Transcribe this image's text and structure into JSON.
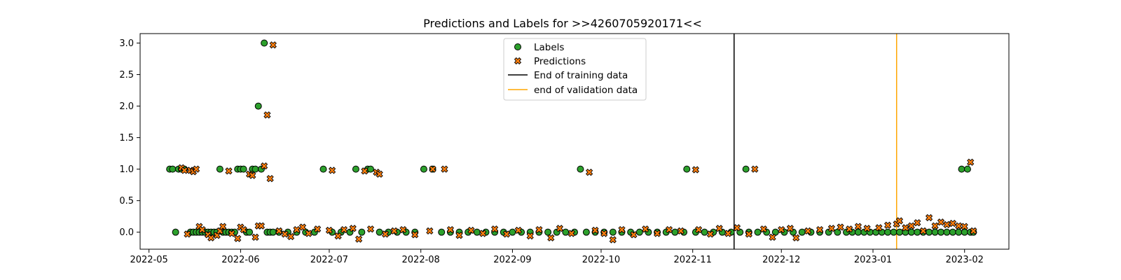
{
  "chart_data": {
    "type": "scatter",
    "title": "Predictions and Labels for >>4260705920171<<",
    "xlabel": "",
    "ylabel": "",
    "xlim": [
      "2022-04-28",
      "2023-02-16"
    ],
    "ylim": [
      -0.27,
      3.15
    ],
    "x_ticks": [
      "2022-05",
      "2022-06",
      "2022-07",
      "2022-08",
      "2022-09",
      "2022-10",
      "2022-11",
      "2022-12",
      "2023-01",
      "2023-02"
    ],
    "y_ticks": [
      "0.0",
      "0.5",
      "1.0",
      "1.5",
      "2.0",
      "2.5",
      "3.0"
    ],
    "grid": false,
    "legend_position": "upper center",
    "series": [
      {
        "name": "Labels",
        "marker": "circle",
        "color": "#2ca02c",
        "edge_color": "#000000",
        "points": [
          {
            "x": "2022-05-08",
            "y": 1
          },
          {
            "x": "2022-05-09",
            "y": 1
          },
          {
            "x": "2022-05-10",
            "y": 0
          },
          {
            "x": "2022-05-11",
            "y": 1
          },
          {
            "x": "2022-05-12",
            "y": 1
          },
          {
            "x": "2022-05-13",
            "y": 1
          },
          {
            "x": "2022-05-15",
            "y": 0
          },
          {
            "x": "2022-05-16",
            "y": 0
          },
          {
            "x": "2022-05-17",
            "y": 0
          },
          {
            "x": "2022-05-18",
            "y": 0
          },
          {
            "x": "2022-05-19",
            "y": 0
          },
          {
            "x": "2022-05-20",
            "y": 0
          },
          {
            "x": "2022-05-21",
            "y": 0
          },
          {
            "x": "2022-05-22",
            "y": 0
          },
          {
            "x": "2022-05-23",
            "y": 0
          },
          {
            "x": "2022-05-24",
            "y": 0
          },
          {
            "x": "2022-05-25",
            "y": 1
          },
          {
            "x": "2022-05-26",
            "y": 0
          },
          {
            "x": "2022-05-27",
            "y": 0
          },
          {
            "x": "2022-05-28",
            "y": 0
          },
          {
            "x": "2022-05-29",
            "y": 0
          },
          {
            "x": "2022-05-30",
            "y": 0
          },
          {
            "x": "2022-05-31",
            "y": 1
          },
          {
            "x": "2022-06-01",
            "y": 1
          },
          {
            "x": "2022-06-02",
            "y": 1
          },
          {
            "x": "2022-06-03",
            "y": 0
          },
          {
            "x": "2022-06-04",
            "y": 0
          },
          {
            "x": "2022-06-05",
            "y": 1
          },
          {
            "x": "2022-06-06",
            "y": 1
          },
          {
            "x": "2022-06-07",
            "y": 2
          },
          {
            "x": "2022-06-08",
            "y": 1
          },
          {
            "x": "2022-06-09",
            "y": 3
          },
          {
            "x": "2022-06-10",
            "y": 0
          },
          {
            "x": "2022-06-11",
            "y": 0
          },
          {
            "x": "2022-06-12",
            "y": 0
          },
          {
            "x": "2022-06-14",
            "y": 0
          },
          {
            "x": "2022-06-17",
            "y": 0
          },
          {
            "x": "2022-06-20",
            "y": 0
          },
          {
            "x": "2022-06-23",
            "y": 0
          },
          {
            "x": "2022-06-26",
            "y": 0
          },
          {
            "x": "2022-06-29",
            "y": 1
          },
          {
            "x": "2022-07-02",
            "y": 0
          },
          {
            "x": "2022-07-05",
            "y": 0
          },
          {
            "x": "2022-07-08",
            "y": 0
          },
          {
            "x": "2022-07-10",
            "y": 1
          },
          {
            "x": "2022-07-12",
            "y": 0
          },
          {
            "x": "2022-07-14",
            "y": 1
          },
          {
            "x": "2022-07-15",
            "y": 1
          },
          {
            "x": "2022-07-18",
            "y": 0
          },
          {
            "x": "2022-07-21",
            "y": 0
          },
          {
            "x": "2022-07-24",
            "y": 0
          },
          {
            "x": "2022-07-27",
            "y": 0
          },
          {
            "x": "2022-07-30",
            "y": 0
          },
          {
            "x": "2022-08-02",
            "y": 1
          },
          {
            "x": "2022-08-05",
            "y": 1
          },
          {
            "x": "2022-08-08",
            "y": 0
          },
          {
            "x": "2022-08-11",
            "y": 0
          },
          {
            "x": "2022-08-14",
            "y": 0
          },
          {
            "x": "2022-08-17",
            "y": 0
          },
          {
            "x": "2022-08-20",
            "y": 0
          },
          {
            "x": "2022-08-23",
            "y": 0
          },
          {
            "x": "2022-08-26",
            "y": 0
          },
          {
            "x": "2022-08-29",
            "y": 0
          },
          {
            "x": "2022-09-01",
            "y": 0
          },
          {
            "x": "2022-09-04",
            "y": 0
          },
          {
            "x": "2022-09-07",
            "y": 0
          },
          {
            "x": "2022-09-10",
            "y": 0
          },
          {
            "x": "2022-09-13",
            "y": 0
          },
          {
            "x": "2022-09-16",
            "y": 0
          },
          {
            "x": "2022-09-19",
            "y": 0
          },
          {
            "x": "2022-09-22",
            "y": 0
          },
          {
            "x": "2022-09-24",
            "y": 1
          },
          {
            "x": "2022-09-26",
            "y": 0
          },
          {
            "x": "2022-09-29",
            "y": 0
          },
          {
            "x": "2022-10-02",
            "y": 0
          },
          {
            "x": "2022-10-05",
            "y": 0
          },
          {
            "x": "2022-10-08",
            "y": 0
          },
          {
            "x": "2022-10-11",
            "y": 0
          },
          {
            "x": "2022-10-14",
            "y": 0
          },
          {
            "x": "2022-10-17",
            "y": 0
          },
          {
            "x": "2022-10-20",
            "y": 0
          },
          {
            "x": "2022-10-23",
            "y": 0
          },
          {
            "x": "2022-10-26",
            "y": 0
          },
          {
            "x": "2022-10-29",
            "y": 0
          },
          {
            "x": "2022-10-30",
            "y": 1
          },
          {
            "x": "2022-11-02",
            "y": 0
          },
          {
            "x": "2022-11-05",
            "y": 0
          },
          {
            "x": "2022-11-08",
            "y": 0
          },
          {
            "x": "2022-11-11",
            "y": 0
          },
          {
            "x": "2022-11-14",
            "y": 0
          },
          {
            "x": "2022-11-17",
            "y": 0
          },
          {
            "x": "2022-11-19",
            "y": 1
          },
          {
            "x": "2022-11-20",
            "y": 0
          },
          {
            "x": "2022-11-23",
            "y": 0
          },
          {
            "x": "2022-11-26",
            "y": 0
          },
          {
            "x": "2022-11-29",
            "y": 0
          },
          {
            "x": "2022-12-02",
            "y": 0
          },
          {
            "x": "2022-12-05",
            "y": 0
          },
          {
            "x": "2022-12-08",
            "y": 0
          },
          {
            "x": "2022-12-11",
            "y": 0
          },
          {
            "x": "2022-12-14",
            "y": 0
          },
          {
            "x": "2022-12-17",
            "y": 0
          },
          {
            "x": "2022-12-20",
            "y": 0
          },
          {
            "x": "2022-12-23",
            "y": 0
          },
          {
            "x": "2022-12-25",
            "y": 0
          },
          {
            "x": "2022-12-27",
            "y": 0
          },
          {
            "x": "2022-12-29",
            "y": 0
          },
          {
            "x": "2022-12-31",
            "y": 0
          },
          {
            "x": "2023-01-02",
            "y": 0
          },
          {
            "x": "2023-01-04",
            "y": 0
          },
          {
            "x": "2023-01-06",
            "y": 0
          },
          {
            "x": "2023-01-08",
            "y": 0
          },
          {
            "x": "2023-01-10",
            "y": 0
          },
          {
            "x": "2023-01-12",
            "y": 0
          },
          {
            "x": "2023-01-14",
            "y": 0
          },
          {
            "x": "2023-01-16",
            "y": 0
          },
          {
            "x": "2023-01-18",
            "y": 0
          },
          {
            "x": "2023-01-20",
            "y": 0
          },
          {
            "x": "2023-01-22",
            "y": 0
          },
          {
            "x": "2023-01-24",
            "y": 0
          },
          {
            "x": "2023-01-26",
            "y": 0
          },
          {
            "x": "2023-01-28",
            "y": 0
          },
          {
            "x": "2023-01-30",
            "y": 0
          },
          {
            "x": "2023-01-31",
            "y": 1
          },
          {
            "x": "2023-02-01",
            "y": 0
          },
          {
            "x": "2023-02-02",
            "y": 1
          },
          {
            "x": "2023-02-03",
            "y": 0
          },
          {
            "x": "2023-02-04",
            "y": 0
          }
        ]
      },
      {
        "name": "Predictions",
        "marker": "x-filled",
        "color": "#ff7f0e",
        "edge_color": "#000000",
        "points": [
          {
            "x": "2022-05-12",
            "y": 1.02
          },
          {
            "x": "2022-05-13",
            "y": 0.98
          },
          {
            "x": "2022-05-14",
            "y": -0.03
          },
          {
            "x": "2022-05-15",
            "y": 0.98
          },
          {
            "x": "2022-05-16",
            "y": 0.96
          },
          {
            "x": "2022-05-17",
            "y": 1.0
          },
          {
            "x": "2022-05-18",
            "y": 0.09
          },
          {
            "x": "2022-05-19",
            "y": 0.04
          },
          {
            "x": "2022-05-21",
            "y": -0.04
          },
          {
            "x": "2022-05-22",
            "y": -0.09
          },
          {
            "x": "2022-05-24",
            "y": -0.05
          },
          {
            "x": "2022-05-25",
            "y": 0.02
          },
          {
            "x": "2022-05-26",
            "y": 0.09
          },
          {
            "x": "2022-05-28",
            "y": 0.97
          },
          {
            "x": "2022-05-29",
            "y": -0.02
          },
          {
            "x": "2022-05-31",
            "y": -0.1
          },
          {
            "x": "2022-06-01",
            "y": 0.08
          },
          {
            "x": "2022-06-02",
            "y": 0.04
          },
          {
            "x": "2022-06-04",
            "y": 0.92
          },
          {
            "x": "2022-06-05",
            "y": 0.9
          },
          {
            "x": "2022-06-06",
            "y": -0.08
          },
          {
            "x": "2022-06-07",
            "y": 0.1
          },
          {
            "x": "2022-06-08",
            "y": 0.1
          },
          {
            "x": "2022-06-09",
            "y": 1.05
          },
          {
            "x": "2022-06-10",
            "y": 1.86
          },
          {
            "x": "2022-06-11",
            "y": 0.85
          },
          {
            "x": "2022-06-12",
            "y": 2.97
          },
          {
            "x": "2022-06-14",
            "y": 0.02
          },
          {
            "x": "2022-06-16",
            "y": -0.03
          },
          {
            "x": "2022-06-18",
            "y": -0.07
          },
          {
            "x": "2022-06-20",
            "y": 0.04
          },
          {
            "x": "2022-06-22",
            "y": 0.08
          },
          {
            "x": "2022-06-24",
            "y": -0.02
          },
          {
            "x": "2022-06-27",
            "y": 0.05
          },
          {
            "x": "2022-07-01",
            "y": 0.03
          },
          {
            "x": "2022-07-02",
            "y": 0.98
          },
          {
            "x": "2022-07-04",
            "y": -0.06
          },
          {
            "x": "2022-07-06",
            "y": 0.04
          },
          {
            "x": "2022-07-09",
            "y": 0.06
          },
          {
            "x": "2022-07-11",
            "y": -0.11
          },
          {
            "x": "2022-07-13",
            "y": 0.97
          },
          {
            "x": "2022-07-15",
            "y": 0.05
          },
          {
            "x": "2022-07-17",
            "y": 0.95
          },
          {
            "x": "2022-07-18",
            "y": 0.92
          },
          {
            "x": "2022-07-20",
            "y": -0.03
          },
          {
            "x": "2022-07-23",
            "y": 0.02
          },
          {
            "x": "2022-07-26",
            "y": 0.04
          },
          {
            "x": "2022-07-30",
            "y": -0.04
          },
          {
            "x": "2022-08-04",
            "y": 0.02
          },
          {
            "x": "2022-08-05",
            "y": 1.0
          },
          {
            "x": "2022-08-09",
            "y": 1.0
          },
          {
            "x": "2022-08-11",
            "y": 0.04
          },
          {
            "x": "2022-08-14",
            "y": -0.05
          },
          {
            "x": "2022-08-18",
            "y": 0.03
          },
          {
            "x": "2022-08-22",
            "y": -0.02
          },
          {
            "x": "2022-08-26",
            "y": 0.05
          },
          {
            "x": "2022-08-30",
            "y": -0.03
          },
          {
            "x": "2022-09-03",
            "y": 0.03
          },
          {
            "x": "2022-09-07",
            "y": -0.06
          },
          {
            "x": "2022-09-10",
            "y": 0.04
          },
          {
            "x": "2022-09-14",
            "y": -0.09
          },
          {
            "x": "2022-09-17",
            "y": 0.06
          },
          {
            "x": "2022-09-21",
            "y": -0.02
          },
          {
            "x": "2022-09-27",
            "y": 0.95
          },
          {
            "x": "2022-09-29",
            "y": 0.03
          },
          {
            "x": "2022-10-02",
            "y": -0.02
          },
          {
            "x": "2022-10-05",
            "y": -0.12
          },
          {
            "x": "2022-10-08",
            "y": 0.04
          },
          {
            "x": "2022-10-12",
            "y": -0.04
          },
          {
            "x": "2022-10-16",
            "y": 0.05
          },
          {
            "x": "2022-10-20",
            "y": -0.02
          },
          {
            "x": "2022-10-24",
            "y": 0.04
          },
          {
            "x": "2022-10-28",
            "y": 0.02
          },
          {
            "x": "2022-11-02",
            "y": 0.99
          },
          {
            "x": "2022-11-03",
            "y": 0.04
          },
          {
            "x": "2022-11-07",
            "y": -0.03
          },
          {
            "x": "2022-11-10",
            "y": 0.06
          },
          {
            "x": "2022-11-13",
            "y": -0.02
          },
          {
            "x": "2022-11-16",
            "y": 0.07
          },
          {
            "x": "2022-11-20",
            "y": -0.03
          },
          {
            "x": "2022-11-22",
            "y": 1.0
          },
          {
            "x": "2022-11-25",
            "y": 0.05
          },
          {
            "x": "2022-11-28",
            "y": -0.08
          },
          {
            "x": "2022-12-01",
            "y": 0.04
          },
          {
            "x": "2022-12-04",
            "y": 0.06
          },
          {
            "x": "2022-12-06",
            "y": -0.09
          },
          {
            "x": "2022-12-10",
            "y": 0.02
          },
          {
            "x": "2022-12-14",
            "y": 0.04
          },
          {
            "x": "2022-12-18",
            "y": 0.06
          },
          {
            "x": "2022-12-21",
            "y": 0.08
          },
          {
            "x": "2022-12-24",
            "y": 0.05
          },
          {
            "x": "2022-12-27",
            "y": 0.09
          },
          {
            "x": "2022-12-30",
            "y": 0.06
          },
          {
            "x": "2023-01-03",
            "y": 0.07
          },
          {
            "x": "2023-01-06",
            "y": 0.11
          },
          {
            "x": "2023-01-09",
            "y": 0.13
          },
          {
            "x": "2023-01-10",
            "y": 0.18
          },
          {
            "x": "2023-01-12",
            "y": 0.07
          },
          {
            "x": "2023-01-14",
            "y": 0.1
          },
          {
            "x": "2023-01-16",
            "y": 0.15
          },
          {
            "x": "2023-01-18",
            "y": 0.02
          },
          {
            "x": "2023-01-20",
            "y": 0.23
          },
          {
            "x": "2023-01-22",
            "y": 0.1
          },
          {
            "x": "2023-01-24",
            "y": 0.16
          },
          {
            "x": "2023-01-26",
            "y": 0.12
          },
          {
            "x": "2023-01-28",
            "y": 0.14
          },
          {
            "x": "2023-01-30",
            "y": 0.1
          },
          {
            "x": "2023-02-01",
            "y": 0.09
          },
          {
            "x": "2023-02-03",
            "y": 1.11
          },
          {
            "x": "2023-02-04",
            "y": 0.02
          }
        ]
      }
    ],
    "reference_lines": [
      {
        "name": "End of training data",
        "x": "2022-11-15",
        "color": "#000000"
      },
      {
        "name": "end of validation data",
        "x": "2023-01-09",
        "color": "#ffa500"
      }
    ]
  }
}
